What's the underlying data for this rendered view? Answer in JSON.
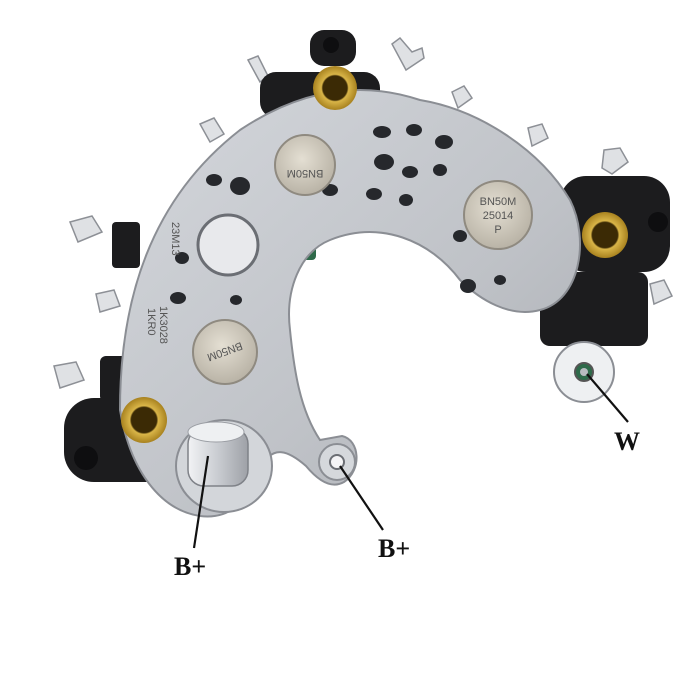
{
  "photo": {
    "subject": "alternator rectifier bridge",
    "diode_marking": "BN50M\n25014\nP",
    "plate_stamps": [
      "23M13",
      "1KR0",
      "1K3028"
    ],
    "colors": {
      "plate": "#c3c6cb",
      "plate_shadow": "#9a9da3",
      "insulator": "#1c1c1e",
      "brass": "#c9a437",
      "diode": "#d4cfc4",
      "terminal": "#e2e4e8",
      "green_pcb": "#2e6a4a"
    }
  },
  "callouts": [
    {
      "label": "B+"
    },
    {
      "label": "B+"
    },
    {
      "label": "W"
    }
  ]
}
